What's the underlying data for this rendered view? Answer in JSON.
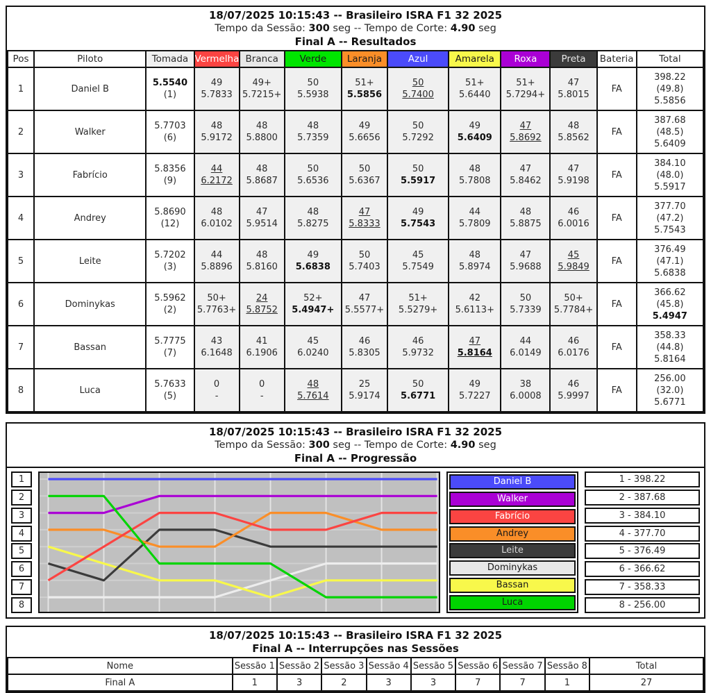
{
  "results": {
    "title": {
      "line1": "18/07/2025 10:15:43 -- Brasileiro ISRA F1 32 2025",
      "line2_parts": [
        {
          "t": "Tempo da Sessão: ",
          "b": false
        },
        {
          "t": "300",
          "b": true
        },
        {
          "t": " seg -- Tempo de Corte: ",
          "b": false
        },
        {
          "t": "4.90",
          "b": true
        },
        {
          "t": " seg",
          "b": false
        }
      ],
      "line3": "Final A -- Resultados"
    },
    "columns": [
      {
        "key": "pos",
        "label": "Pos",
        "bg": "#FFFFFF",
        "fg": "#2b2b2b",
        "w": "3.8%"
      },
      {
        "key": "piloto",
        "label": "Piloto",
        "bg": "#FFFFFF",
        "fg": "#2b2b2b",
        "w": "16.1%"
      },
      {
        "key": "tomada",
        "label": "Tomada",
        "bg": "#F0F0F0",
        "fg": "#2b2b2b",
        "w": "6.9%"
      },
      {
        "key": "vermelha",
        "label": "Vermelha",
        "bg": "#FB4442",
        "fg": "#FFFFFF",
        "w": "6.5%"
      },
      {
        "key": "branca",
        "label": "Branca",
        "bg": "#E8E8E8",
        "fg": "#2b2b2b",
        "w": "6.5%"
      },
      {
        "key": "verde",
        "label": "Verde",
        "bg": "#00E500",
        "fg": "#1a1a1a",
        "w": "8.2%"
      },
      {
        "key": "laranja",
        "label": "Laranja",
        "bg": "#FA8E28",
        "fg": "#1a1a1a",
        "w": "6.6%"
      },
      {
        "key": "azul",
        "label": "Azul",
        "bg": "#4B4BFA",
        "fg": "#FFFFFF",
        "w": "8.8%"
      },
      {
        "key": "amarela",
        "label": "Amarela",
        "bg": "#F8F84B",
        "fg": "#1a1a1a",
        "w": "7.5%"
      },
      {
        "key": "roxa",
        "label": "Roxa",
        "bg": "#AA00D5",
        "fg": "#FFFFFF",
        "w": "7.1%"
      },
      {
        "key": "preta",
        "label": "Preta",
        "bg": "#3B3B3B",
        "fg": "#E8E8E8",
        "w": "6.7%"
      },
      {
        "key": "bateria",
        "label": "Bateria",
        "bg": "#FFFFFF",
        "fg": "#2b2b2b",
        "w": "5.7%"
      },
      {
        "key": "total",
        "label": "Total",
        "bg": "#FFFFFF",
        "fg": "#2b2b2b",
        "w": "9.6%"
      }
    ],
    "rows": [
      {
        "pos": "1",
        "pilot": "Daniel B",
        "tomada": {
          "time": "5.5540",
          "rank": "(1)",
          "bold": true
        },
        "sessions": [
          {
            "laps": "49",
            "best": "5.7833",
            "drop": false,
            "bold": false
          },
          {
            "laps": "49+",
            "best": "5.7215+",
            "drop": false,
            "bold": false
          },
          {
            "laps": "50",
            "best": "5.5938",
            "drop": false,
            "bold": false
          },
          {
            "laps": "51+",
            "best": "5.5856",
            "drop": false,
            "bold": true
          },
          {
            "laps": "50",
            "best": "5.7400",
            "drop": true,
            "bold": false
          },
          {
            "laps": "51+",
            "best": "5.6440",
            "drop": false,
            "bold": false
          },
          {
            "laps": "51+",
            "best": "5.7294+",
            "drop": false,
            "bold": false
          },
          {
            "laps": "47",
            "best": "5.8015",
            "drop": false,
            "bold": false
          }
        ],
        "bateria": "FA",
        "total": {
          "pts": "398.22",
          "avg": "(49.8)",
          "best": "5.5856",
          "bold": false
        }
      },
      {
        "pos": "2",
        "pilot": "Walker",
        "tomada": {
          "time": "5.7703",
          "rank": "(6)",
          "bold": false
        },
        "sessions": [
          {
            "laps": "48",
            "best": "5.9172",
            "drop": false,
            "bold": false
          },
          {
            "laps": "48",
            "best": "5.8800",
            "drop": false,
            "bold": false
          },
          {
            "laps": "48",
            "best": "5.7359",
            "drop": false,
            "bold": false
          },
          {
            "laps": "49",
            "best": "5.6656",
            "drop": false,
            "bold": false
          },
          {
            "laps": "50",
            "best": "5.7292",
            "drop": false,
            "bold": false
          },
          {
            "laps": "49",
            "best": "5.6409",
            "drop": false,
            "bold": true
          },
          {
            "laps": "47",
            "best": "5.8692",
            "drop": true,
            "bold": false
          },
          {
            "laps": "48",
            "best": "5.8562",
            "drop": false,
            "bold": false
          }
        ],
        "bateria": "FA",
        "total": {
          "pts": "387.68",
          "avg": "(48.5)",
          "best": "5.6409",
          "bold": false
        }
      },
      {
        "pos": "3",
        "pilot": "Fabrício",
        "tomada": {
          "time": "5.8356",
          "rank": "(9)",
          "bold": false
        },
        "sessions": [
          {
            "laps": "44",
            "best": "6.2172",
            "drop": true,
            "bold": false
          },
          {
            "laps": "48",
            "best": "5.8687",
            "drop": false,
            "bold": false
          },
          {
            "laps": "50",
            "best": "5.6536",
            "drop": false,
            "bold": false
          },
          {
            "laps": "50",
            "best": "5.6367",
            "drop": false,
            "bold": false
          },
          {
            "laps": "50",
            "best": "5.5917",
            "drop": false,
            "bold": true
          },
          {
            "laps": "48",
            "best": "5.7808",
            "drop": false,
            "bold": false
          },
          {
            "laps": "47",
            "best": "5.8462",
            "drop": false,
            "bold": false
          },
          {
            "laps": "47",
            "best": "5.9198",
            "drop": false,
            "bold": false
          }
        ],
        "bateria": "FA",
        "total": {
          "pts": "384.10",
          "avg": "(48.0)",
          "best": "5.5917",
          "bold": false
        }
      },
      {
        "pos": "4",
        "pilot": "Andrey",
        "tomada": {
          "time": "5.8690",
          "rank": "(12)",
          "bold": false
        },
        "sessions": [
          {
            "laps": "48",
            "best": "6.0102",
            "drop": false,
            "bold": false
          },
          {
            "laps": "47",
            "best": "5.9514",
            "drop": false,
            "bold": false
          },
          {
            "laps": "48",
            "best": "5.8275",
            "drop": false,
            "bold": false
          },
          {
            "laps": "47",
            "best": "5.8333",
            "drop": true,
            "bold": false
          },
          {
            "laps": "49",
            "best": "5.7543",
            "drop": false,
            "bold": true
          },
          {
            "laps": "44",
            "best": "5.7809",
            "drop": false,
            "bold": false
          },
          {
            "laps": "48",
            "best": "5.8875",
            "drop": false,
            "bold": false
          },
          {
            "laps": "46",
            "best": "6.0016",
            "drop": false,
            "bold": false
          }
        ],
        "bateria": "FA",
        "total": {
          "pts": "377.70",
          "avg": "(47.2)",
          "best": "5.7543",
          "bold": false
        }
      },
      {
        "pos": "5",
        "pilot": "Leite",
        "tomada": {
          "time": "5.7202",
          "rank": "(3)",
          "bold": false
        },
        "sessions": [
          {
            "laps": "44",
            "best": "5.8896",
            "drop": false,
            "bold": false
          },
          {
            "laps": "48",
            "best": "5.8160",
            "drop": false,
            "bold": false
          },
          {
            "laps": "49",
            "best": "5.6838",
            "drop": false,
            "bold": true
          },
          {
            "laps": "50",
            "best": "5.7403",
            "drop": false,
            "bold": false
          },
          {
            "laps": "45",
            "best": "5.7549",
            "drop": false,
            "bold": false
          },
          {
            "laps": "48",
            "best": "5.8974",
            "drop": false,
            "bold": false
          },
          {
            "laps": "47",
            "best": "5.9688",
            "drop": false,
            "bold": false
          },
          {
            "laps": "45",
            "best": "5.9849",
            "drop": true,
            "bold": false
          }
        ],
        "bateria": "FA",
        "total": {
          "pts": "376.49",
          "avg": "(47.1)",
          "best": "5.6838",
          "bold": false
        }
      },
      {
        "pos": "6",
        "pilot": "Dominykas",
        "tomada": {
          "time": "5.5962",
          "rank": "(2)",
          "bold": false
        },
        "sessions": [
          {
            "laps": "50+",
            "best": "5.7763+",
            "drop": false,
            "bold": false
          },
          {
            "laps": "24",
            "best": "5.8752",
            "drop": true,
            "bold": false
          },
          {
            "laps": "52+",
            "best": "5.4947+",
            "drop": false,
            "bold": true
          },
          {
            "laps": "47",
            "best": "5.5577+",
            "drop": false,
            "bold": false
          },
          {
            "laps": "51+",
            "best": "5.5279+",
            "drop": false,
            "bold": false
          },
          {
            "laps": "42",
            "best": "5.6113+",
            "drop": false,
            "bold": false
          },
          {
            "laps": "50",
            "best": "5.7339",
            "drop": false,
            "bold": false
          },
          {
            "laps": "50+",
            "best": "5.7784+",
            "drop": false,
            "bold": false
          }
        ],
        "bateria": "FA",
        "total": {
          "pts": "366.62",
          "avg": "(45.8)",
          "best": "5.4947",
          "bold": true
        }
      },
      {
        "pos": "7",
        "pilot": "Bassan",
        "tomada": {
          "time": "5.7775",
          "rank": "(7)",
          "bold": false
        },
        "sessions": [
          {
            "laps": "43",
            "best": "6.1648",
            "drop": false,
            "bold": false
          },
          {
            "laps": "41",
            "best": "6.1906",
            "drop": false,
            "bold": false
          },
          {
            "laps": "45",
            "best": "6.0240",
            "drop": false,
            "bold": false
          },
          {
            "laps": "46",
            "best": "5.8305",
            "drop": false,
            "bold": false
          },
          {
            "laps": "46",
            "best": "5.9732",
            "drop": false,
            "bold": false
          },
          {
            "laps": "47",
            "best": "5.8164",
            "drop": true,
            "bold": true
          },
          {
            "laps": "44",
            "best": "6.0149",
            "drop": false,
            "bold": false
          },
          {
            "laps": "46",
            "best": "6.0176",
            "drop": false,
            "bold": false
          }
        ],
        "bateria": "FA",
        "total": {
          "pts": "358.33",
          "avg": "(44.8)",
          "best": "5.8164",
          "bold": false
        }
      },
      {
        "pos": "8",
        "pilot": "Luca",
        "tomada": {
          "time": "5.7633",
          "rank": "(5)",
          "bold": false
        },
        "sessions": [
          {
            "laps": "0",
            "best": "-",
            "drop": false,
            "bold": false
          },
          {
            "laps": "0",
            "best": "-",
            "drop": false,
            "bold": false
          },
          {
            "laps": "48",
            "best": "5.7614",
            "drop": true,
            "bold": false
          },
          {
            "laps": "25",
            "best": "5.9174",
            "drop": false,
            "bold": false
          },
          {
            "laps": "50",
            "best": "5.6771",
            "drop": false,
            "bold": true
          },
          {
            "laps": "49",
            "best": "5.7227",
            "drop": false,
            "bold": false
          },
          {
            "laps": "38",
            "best": "6.0008",
            "drop": false,
            "bold": false
          },
          {
            "laps": "46",
            "best": "5.9997",
            "drop": false,
            "bold": false
          }
        ],
        "bateria": "FA",
        "total": {
          "pts": "256.00",
          "avg": "(32.0)",
          "best": "5.6771",
          "bold": false
        }
      }
    ]
  },
  "progression": {
    "title": {
      "line1": "18/07/2025 10:15:43 -- Brasileiro ISRA F1 32 2025",
      "line2_parts": [
        {
          "t": "Tempo da Sessão: ",
          "b": false
        },
        {
          "t": "300",
          "b": true
        },
        {
          "t": " seg -- Tempo de Corte: ",
          "b": false
        },
        {
          "t": "4.90",
          "b": true
        },
        {
          "t": " seg",
          "b": false
        }
      ],
      "line3": "Final A -- Progressão"
    },
    "position_labels": [
      "1",
      "2",
      "3",
      "4",
      "5",
      "6",
      "7",
      "8"
    ],
    "chart_data": {
      "type": "line",
      "x": [
        1,
        2,
        3,
        4,
        5,
        6,
        7,
        8
      ],
      "plot_bg": "#C0C0C0",
      "grid_v_color": "#E4E4E4",
      "grid_h_color": "#CFCFCF",
      "series": [
        {
          "name": "Daniel B",
          "color": "#4B4BFA",
          "text_color": "#FFFFFF",
          "score_label": "1 - 398.22",
          "positions": [
            1,
            1,
            1,
            1,
            1,
            1,
            1,
            1
          ]
        },
        {
          "name": "Walker",
          "color": "#AA00D5",
          "text_color": "#FFFFFF",
          "score_label": "2 - 387.68",
          "positions": [
            3,
            3,
            2,
            2,
            2,
            2,
            2,
            2
          ]
        },
        {
          "name": "Fabrício",
          "color": "#FB4442",
          "text_color": "#FFFFFF",
          "score_label": "3 - 384.10",
          "positions": [
            7,
            5,
            3,
            3,
            4,
            4,
            3,
            3
          ]
        },
        {
          "name": "Andrey",
          "color": "#FA8E28",
          "text_color": "#1a1a1a",
          "score_label": "4 - 377.70",
          "positions": [
            4,
            4,
            5,
            5,
            3,
            3,
            4,
            4
          ]
        },
        {
          "name": "Leite",
          "color": "#3B3B3B",
          "text_color": "#D8D8D8",
          "score_label": "5 - 376.49",
          "positions": [
            6,
            7,
            4,
            4,
            5,
            5,
            5,
            5
          ]
        },
        {
          "name": "Dominykas",
          "color": "#E8E8E8",
          "text_color": "#1a1a1a",
          "score_label": "6 - 366.62",
          "positions": [
            8,
            8,
            8,
            8,
            7,
            6,
            6,
            6
          ]
        },
        {
          "name": "Bassan",
          "color": "#F8F84B",
          "text_color": "#1a1a1a",
          "score_label": "7 - 358.33",
          "positions": [
            5,
            6,
            7,
            7,
            8,
            7,
            7,
            7
          ]
        },
        {
          "name": "Luca",
          "color": "#00D400",
          "text_color": "#1a1a1a",
          "score_label": "8 - 256.00",
          "positions": [
            2,
            2,
            6,
            6,
            6,
            8,
            8,
            8
          ]
        }
      ],
      "draw_order": [
        5,
        6,
        4,
        3,
        2,
        1,
        0,
        7
      ]
    }
  },
  "interruptions": {
    "title": {
      "line1": "18/07/2025 10:15:43 -- Brasileiro ISRA F1 32 2025",
      "line2": "Final A -- Interrupções nas Sessões"
    },
    "columns": [
      "Nome",
      "Sessão 1",
      "Sessão 2",
      "Sessão 3",
      "Sessão 4",
      "Sessão 5",
      "Sessão 6",
      "Sessão 7",
      "Sessão 8",
      "Total"
    ],
    "row": {
      "name": "Final A",
      "values": [
        "1",
        "3",
        "2",
        "3",
        "3",
        "7",
        "7",
        "1"
      ],
      "total": "27"
    }
  }
}
